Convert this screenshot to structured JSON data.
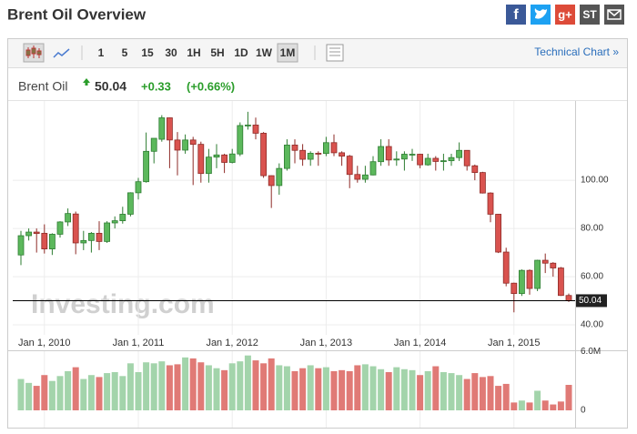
{
  "header": {
    "title": "Brent Oil Overview",
    "social": [
      "f",
      "g+",
      "ST"
    ],
    "technical_link": "Technical Chart »"
  },
  "toolbar": {
    "intervals": [
      "1",
      "5",
      "15",
      "30",
      "1H",
      "5H",
      "1D",
      "1W",
      "1M"
    ]
  },
  "quote": {
    "name": "Brent Oil",
    "change": "+0.33",
    "change_pct": "(+0.66%)"
  },
  "chart_data": {
    "type": "candlestick",
    "watermark": "Investing.com",
    "grid": true,
    "up_color": "#5cb85c",
    "down_color": "#d9534f",
    "volume_up_color": "#a3d4ab",
    "volume_down_color": "#e07a76",
    "last_price": 50.04,
    "categories": [
      null,
      null,
      null,
      "Jan 1, 2010",
      null,
      null,
      null,
      null,
      null,
      null,
      null,
      null,
      null,
      null,
      null,
      "Jan 1, 2011",
      null,
      null,
      null,
      null,
      null,
      null,
      null,
      null,
      null,
      null,
      null,
      "Jan 1, 2012",
      null,
      null,
      null,
      null,
      null,
      null,
      null,
      null,
      null,
      null,
      null,
      "Jan 1, 2013",
      null,
      null,
      null,
      null,
      null,
      null,
      null,
      null,
      null,
      null,
      null,
      "Jan 1, 2014",
      null,
      null,
      null,
      null,
      null,
      null,
      null,
      null,
      null,
      null,
      null,
      "Jan 1, 2015",
      null,
      null,
      null,
      null,
      null,
      null,
      null
    ],
    "open": [
      69.0,
      77.0,
      78.5,
      78.0,
      71.5,
      77.6,
      82.7,
      86.0,
      74.0,
      75.0,
      78.0,
      74.6,
      82.3,
      83.2,
      85.9,
      94.8,
      99.4,
      112.0,
      117.0,
      125.9,
      116.7,
      112.5,
      116.7,
      114.9,
      102.8,
      109.6,
      110.5,
      107.4,
      110.9,
      122.7,
      122.9,
      119.5,
      101.9,
      97.8,
      104.9,
      114.6,
      112.4,
      108.7,
      111.2,
      111.1,
      115.6,
      111.4,
      110.0,
      102.4,
      100.4,
      102.2,
      107.7,
      114.0,
      108.4,
      108.8,
      110.8,
      110.8,
      106.4,
      109.1,
      107.8,
      108.1,
      109.4,
      112.4,
      106.0,
      103.2,
      94.7,
      85.9,
      70.2,
      57.3,
      53.0,
      62.6,
      55.1,
      66.8,
      65.6,
      63.6,
      52.2
    ],
    "high": [
      79.0,
      80.0,
      80.0,
      81.7,
      78.0,
      83.0,
      88.3,
      87.0,
      79.0,
      78.5,
      83.0,
      83.0,
      85.0,
      89.0,
      95.0,
      101.0,
      119.8,
      117.0,
      127.0,
      126.0,
      120.0,
      119.0,
      118.0,
      116.0,
      113.0,
      115.0,
      111.0,
      113.0,
      124.0,
      128.4,
      126.0,
      120.0,
      102.0,
      107.0,
      117.0,
      117.0,
      115.0,
      112.0,
      112.0,
      118.0,
      119.0,
      112.0,
      110.5,
      106.0,
      106.0,
      110.0,
      117.0,
      117.0,
      112.0,
      112.0,
      113.0,
      111.0,
      111.0,
      110.0,
      111.0,
      111.0,
      115.7,
      112.5,
      106.5,
      103.5,
      95.0,
      86.0,
      72.0,
      57.5,
      63.0,
      63.0,
      67.0,
      69.6,
      66.0,
      64.0,
      53.0
    ],
    "low": [
      64.8,
      75.0,
      70.0,
      69.6,
      69.0,
      76.2,
      81.0,
      69.3,
      71.0,
      70.0,
      71.0,
      74.0,
      80.0,
      82.0,
      85.0,
      92.0,
      99.0,
      107.0,
      116.0,
      105.0,
      102.0,
      111.0,
      98.0,
      99.0,
      99.0,
      105.0,
      103.0,
      107.0,
      110.0,
      121.0,
      117.0,
      101.0,
      88.5,
      94.0,
      104.0,
      107.0,
      106.0,
      106.0,
      106.0,
      110.0,
      110.0,
      106.0,
      96.7,
      99.0,
      99.0,
      102.0,
      106.0,
      106.0,
      106.0,
      104.0,
      108.0,
      105.0,
      106.0,
      104.0,
      104.0,
      106.0,
      108.0,
      104.0,
      100.0,
      94.5,
      82.6,
      69.8,
      56.0,
      45.2,
      52.0,
      52.5,
      54.0,
      61.5,
      60.0,
      52.0,
      49.5
    ],
    "close": [
      77.0,
      78.5,
      77.9,
      71.5,
      77.6,
      82.7,
      86.2,
      74.0,
      75.0,
      78.0,
      74.6,
      82.3,
      83.2,
      85.9,
      94.8,
      99.4,
      112.0,
      117.4,
      125.9,
      116.7,
      112.5,
      116.7,
      114.9,
      102.8,
      109.6,
      110.5,
      107.4,
      110.9,
      122.7,
      122.9,
      119.5,
      101.9,
      97.8,
      104.9,
      114.6,
      112.4,
      108.7,
      111.2,
      111.1,
      115.6,
      111.4,
      110.0,
      102.4,
      100.4,
      102.2,
      107.7,
      114.0,
      108.4,
      108.8,
      110.8,
      110.8,
      106.4,
      109.1,
      107.8,
      108.1,
      109.4,
      112.4,
      106.0,
      103.2,
      94.7,
      85.9,
      70.2,
      57.3,
      53.0,
      62.6,
      55.1,
      66.8,
      65.6,
      63.6,
      52.2,
      50.04
    ],
    "volume": [
      3200000,
      2800000,
      2500000,
      3600000,
      3000000,
      3500000,
      4000000,
      4400000,
      3200000,
      3600000,
      3400000,
      3800000,
      3900000,
      3500000,
      4800000,
      3900000,
      4900000,
      4800000,
      5000000,
      4600000,
      4700000,
      5400000,
      5300000,
      4900000,
      4600000,
      4300000,
      4100000,
      4800000,
      5000000,
      5600000,
      5100000,
      4800000,
      5300000,
      4600000,
      4500000,
      4000000,
      4300000,
      4600000,
      4300000,
      4400000,
      4000000,
      4100000,
      4000000,
      4600000,
      4700000,
      4500000,
      4200000,
      3900000,
      4400000,
      4200000,
      4100000,
      3600000,
      4000000,
      4500000,
      3900000,
      3800000,
      3600000,
      3200000,
      3800000,
      3400000,
      3500000,
      2500000,
      2700000,
      800000,
      1000000,
      800000,
      2000000,
      1000000,
      600000,
      900000,
      2600000
    ],
    "ylim": [
      37,
      132.5
    ],
    "yticks": [
      {
        "value": 40,
        "label": "40.00"
      },
      {
        "value": 60,
        "label": "60.00"
      },
      {
        "value": 80,
        "label": "80.00"
      },
      {
        "value": 100,
        "label": "100.00"
      }
    ],
    "vlim": [
      0,
      6500000
    ],
    "vticks": [
      0,
      {
        "value": 6000000,
        "label": "6.0M"
      }
    ]
  }
}
